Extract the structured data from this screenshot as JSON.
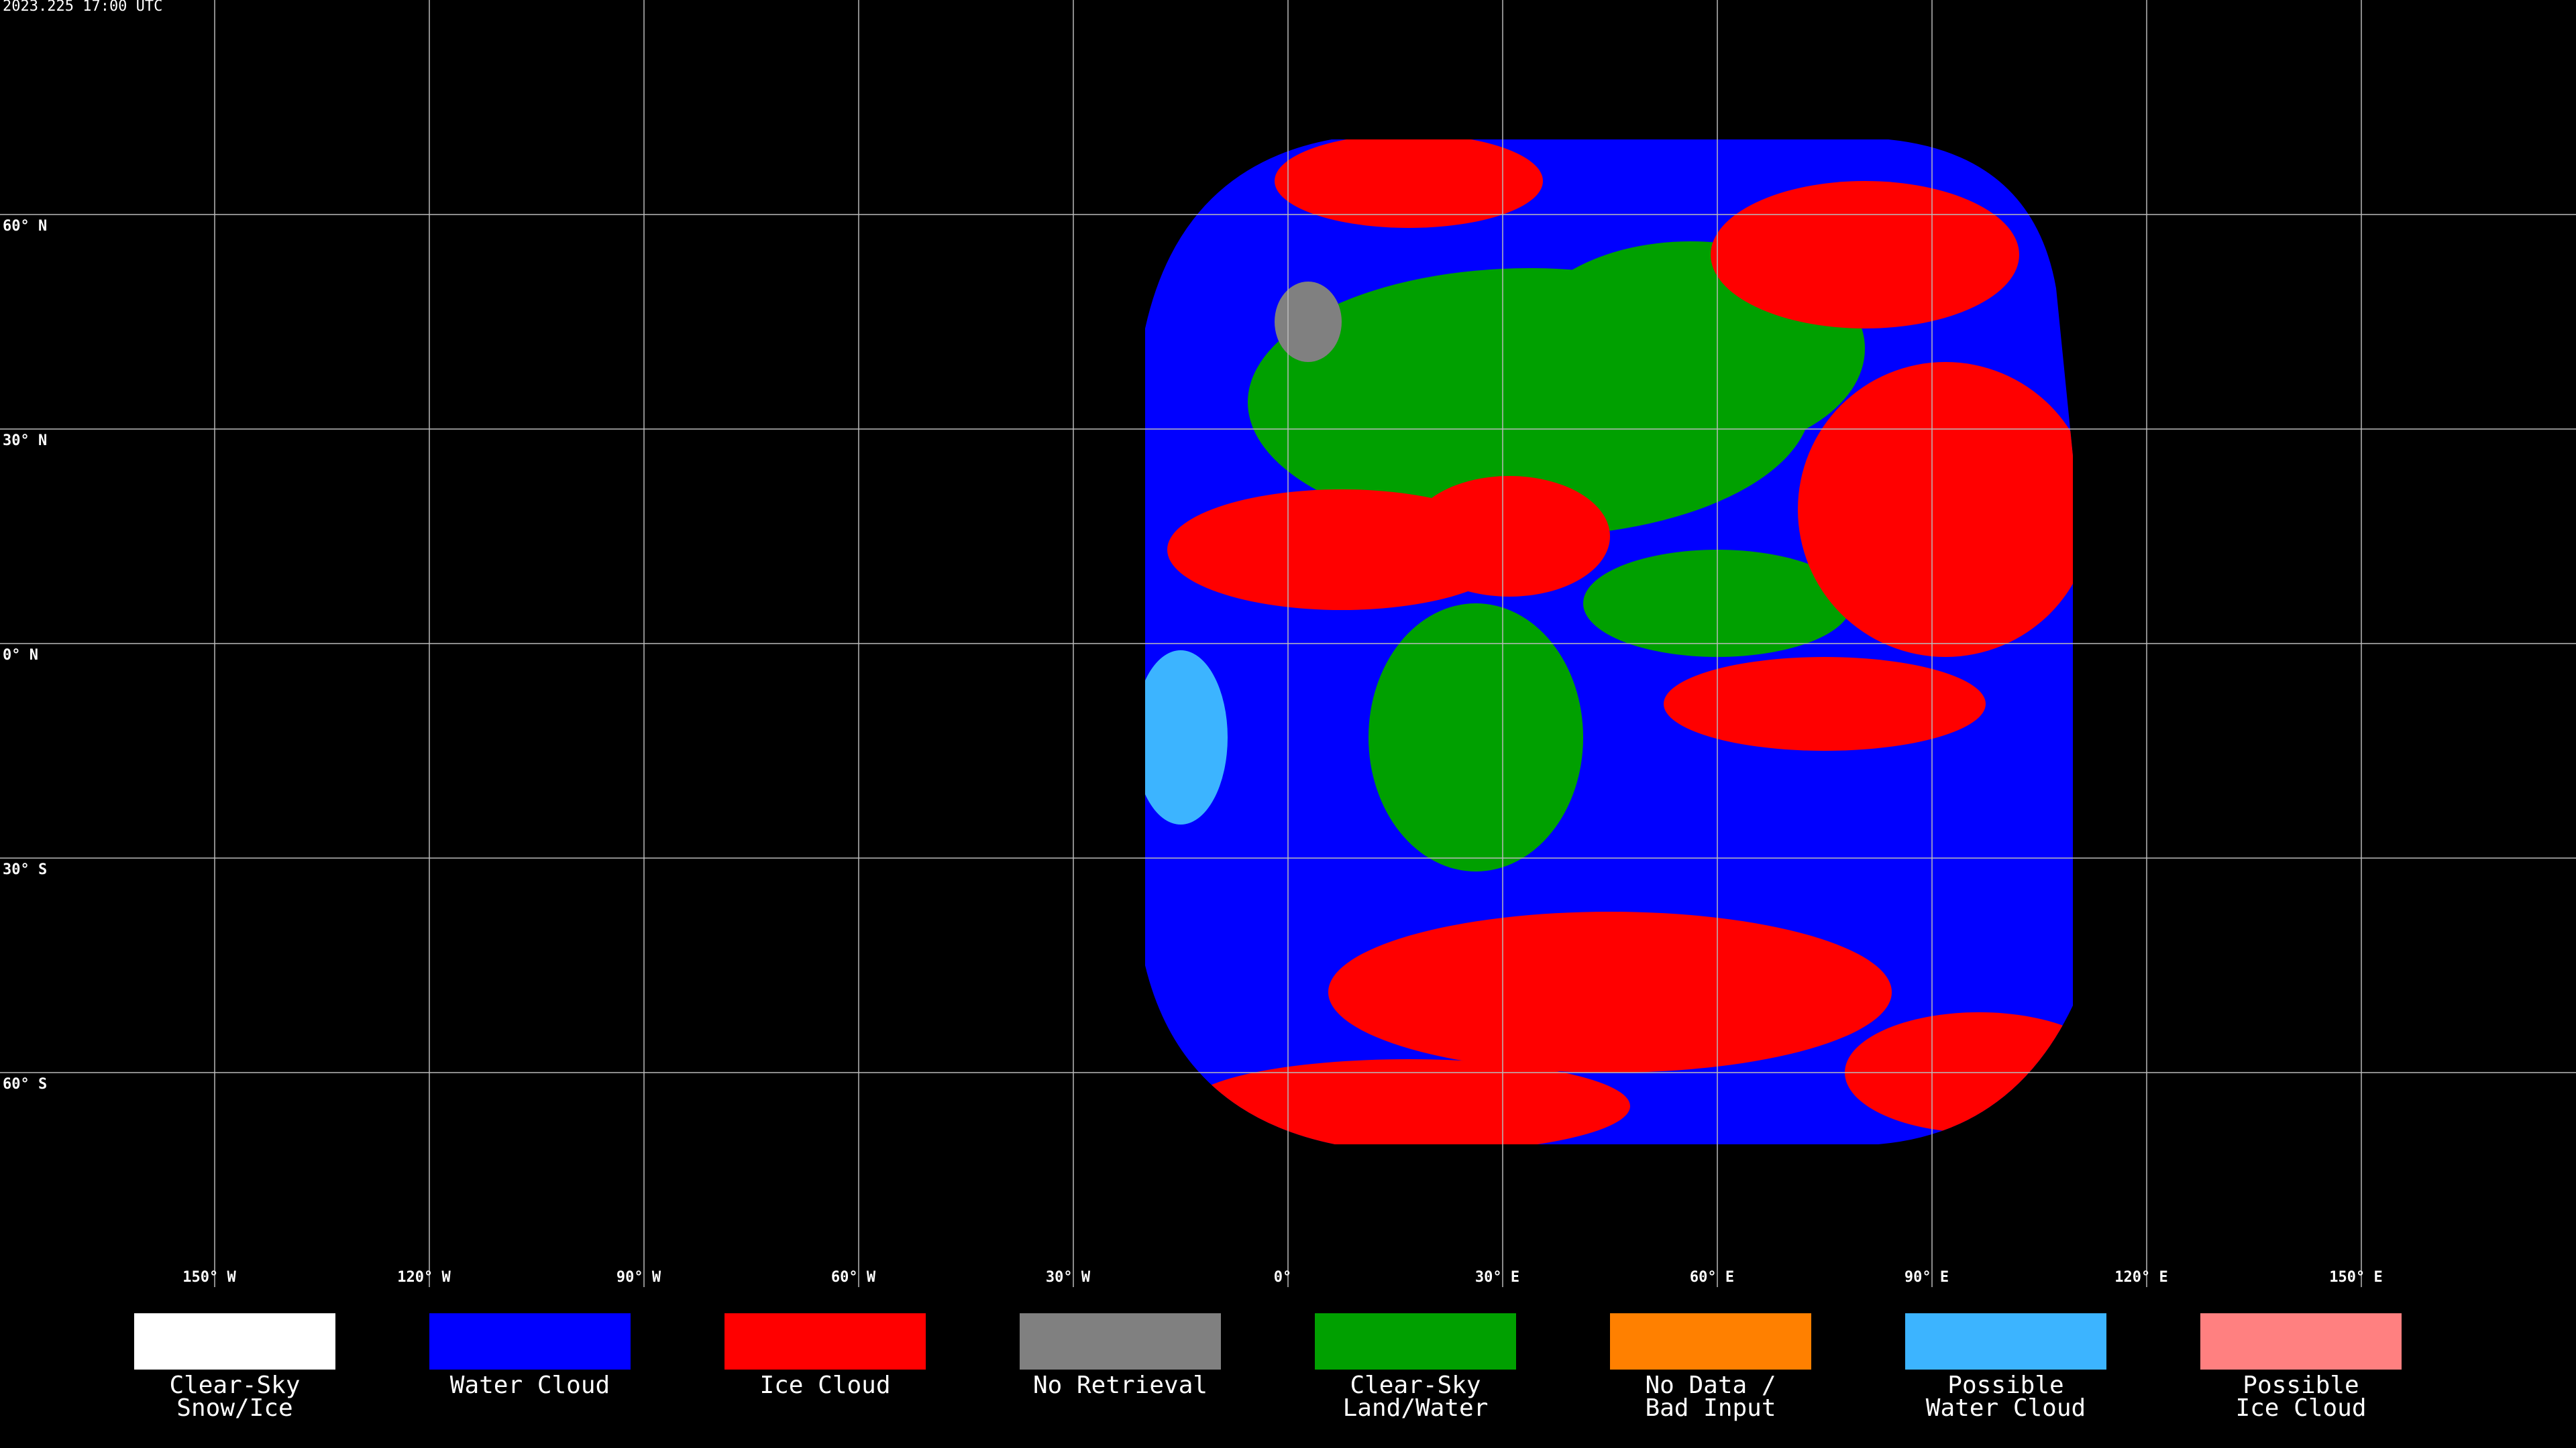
{
  "timestamp": "2023.225 17:00 UTC",
  "map": {
    "lon_range": [
      -180,
      180
    ],
    "lat_range": [
      90,
      -90
    ],
    "lat_ticks": [
      {
        "value": 60,
        "label": "60° N"
      },
      {
        "value": 30,
        "label": "30° N"
      },
      {
        "value": 0,
        "label": "0° N"
      },
      {
        "value": -30,
        "label": "30° S"
      },
      {
        "value": -60,
        "label": "60° S"
      }
    ],
    "lon_ticks": [
      {
        "value": -150,
        "label": "150° W"
      },
      {
        "value": -120,
        "label": "120° W"
      },
      {
        "value": -90,
        "label": "90° W"
      },
      {
        "value": -60,
        "label": "60° W"
      },
      {
        "value": -30,
        "label": "30° W"
      },
      {
        "value": 0,
        "label": "0°"
      },
      {
        "value": 30,
        "label": "30° E"
      },
      {
        "value": 60,
        "label": "60° E"
      },
      {
        "value": 90,
        "label": "90° E"
      },
      {
        "value": 120,
        "label": "120° E"
      },
      {
        "value": 150,
        "label": "150° E"
      }
    ]
  },
  "legend": [
    {
      "lines": [
        "Clear-Sky",
        "Snow/Ice"
      ],
      "color": "#ffffff"
    },
    {
      "lines": [
        "Water Cloud"
      ],
      "color": "#0000ff"
    },
    {
      "lines": [
        "Ice Cloud"
      ],
      "color": "#ff0000"
    },
    {
      "lines": [
        "No Retrieval"
      ],
      "color": "#808080"
    },
    {
      "lines": [
        "Clear-Sky",
        "Land/Water"
      ],
      "color": "#00a000"
    },
    {
      "lines": [
        "No Data /",
        "Bad Input"
      ],
      "color": "#ff8000"
    },
    {
      "lines": [
        "Possible",
        "Water Cloud"
      ],
      "color": "#3cb4ff"
    },
    {
      "lines": [
        "Possible",
        "Ice Cloud"
      ],
      "color": "#ff8080"
    }
  ]
}
